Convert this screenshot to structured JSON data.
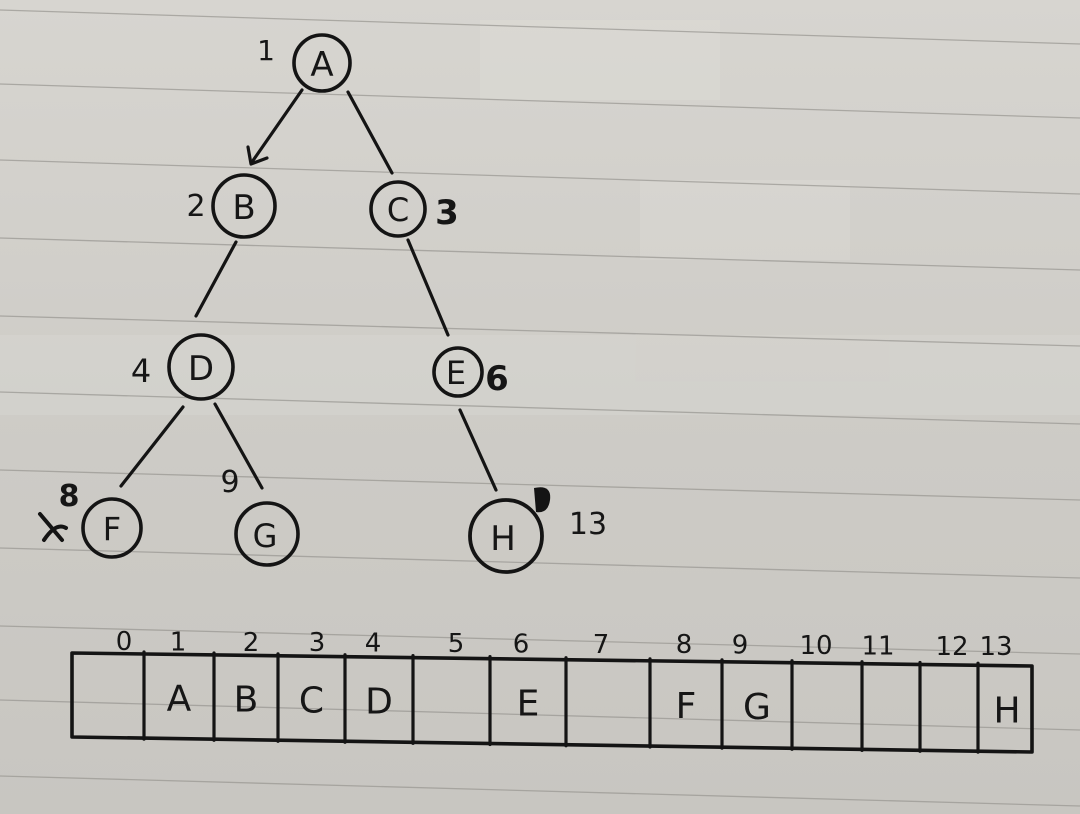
{
  "diagram": {
    "tree": {
      "nodes": [
        {
          "label": "A",
          "index": "1"
        },
        {
          "label": "B",
          "index": "2"
        },
        {
          "label": "C",
          "index": "3"
        },
        {
          "label": "D",
          "index": "4"
        },
        {
          "label": "E",
          "index": "6"
        },
        {
          "label": "F",
          "index": "8"
        },
        {
          "label": "G",
          "index": "9"
        },
        {
          "label": "H",
          "index": "13"
        }
      ],
      "edges": [
        [
          "A",
          "B"
        ],
        [
          "A",
          "C"
        ],
        [
          "B",
          "D"
        ],
        [
          "C",
          "E"
        ],
        [
          "D",
          "F"
        ],
        [
          "D",
          "G"
        ],
        [
          "E",
          "H"
        ]
      ]
    },
    "array": {
      "indices": [
        "0",
        "1",
        "2",
        "3",
        "4",
        "5",
        "6",
        "7",
        "8",
        "9",
        "10",
        "11",
        "12",
        "13"
      ],
      "cells": [
        "",
        "A",
        "B",
        "C",
        "D",
        "",
        "E",
        "",
        "F",
        "G",
        "",
        "",
        "",
        "H"
      ]
    }
  }
}
